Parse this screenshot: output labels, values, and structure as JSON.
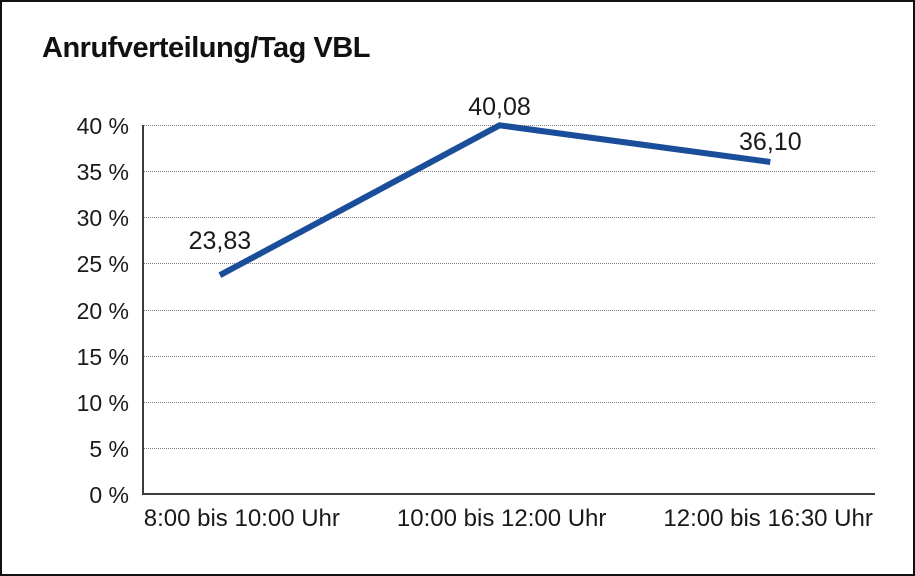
{
  "title": "Anrufverteilung/Tag VBL",
  "chart_data": {
    "type": "line",
    "title": "Anrufverteilung/Tag VBL",
    "categories": [
      "8:00 bis 10:00 Uhr",
      "10:00 bis 12:00 Uhr",
      "12:00 bis 16:30 Uhr"
    ],
    "values": [
      23.83,
      40.08,
      36.1
    ],
    "value_labels": [
      "23,83",
      "40,08",
      "36,10"
    ],
    "xlabel": "",
    "ylabel": "",
    "ylim": [
      0,
      40
    ],
    "yticks": [
      0,
      5,
      10,
      15,
      20,
      25,
      30,
      35,
      40
    ],
    "ytick_labels": [
      "0 %",
      "5 %",
      "10 %",
      "15 %",
      "20 %",
      "25 %",
      "30 %",
      "35 %",
      "40 %"
    ],
    "grid": "horizontal-dotted",
    "legend": "none",
    "line_color": "#1a4e9a",
    "line_width": 6
  }
}
